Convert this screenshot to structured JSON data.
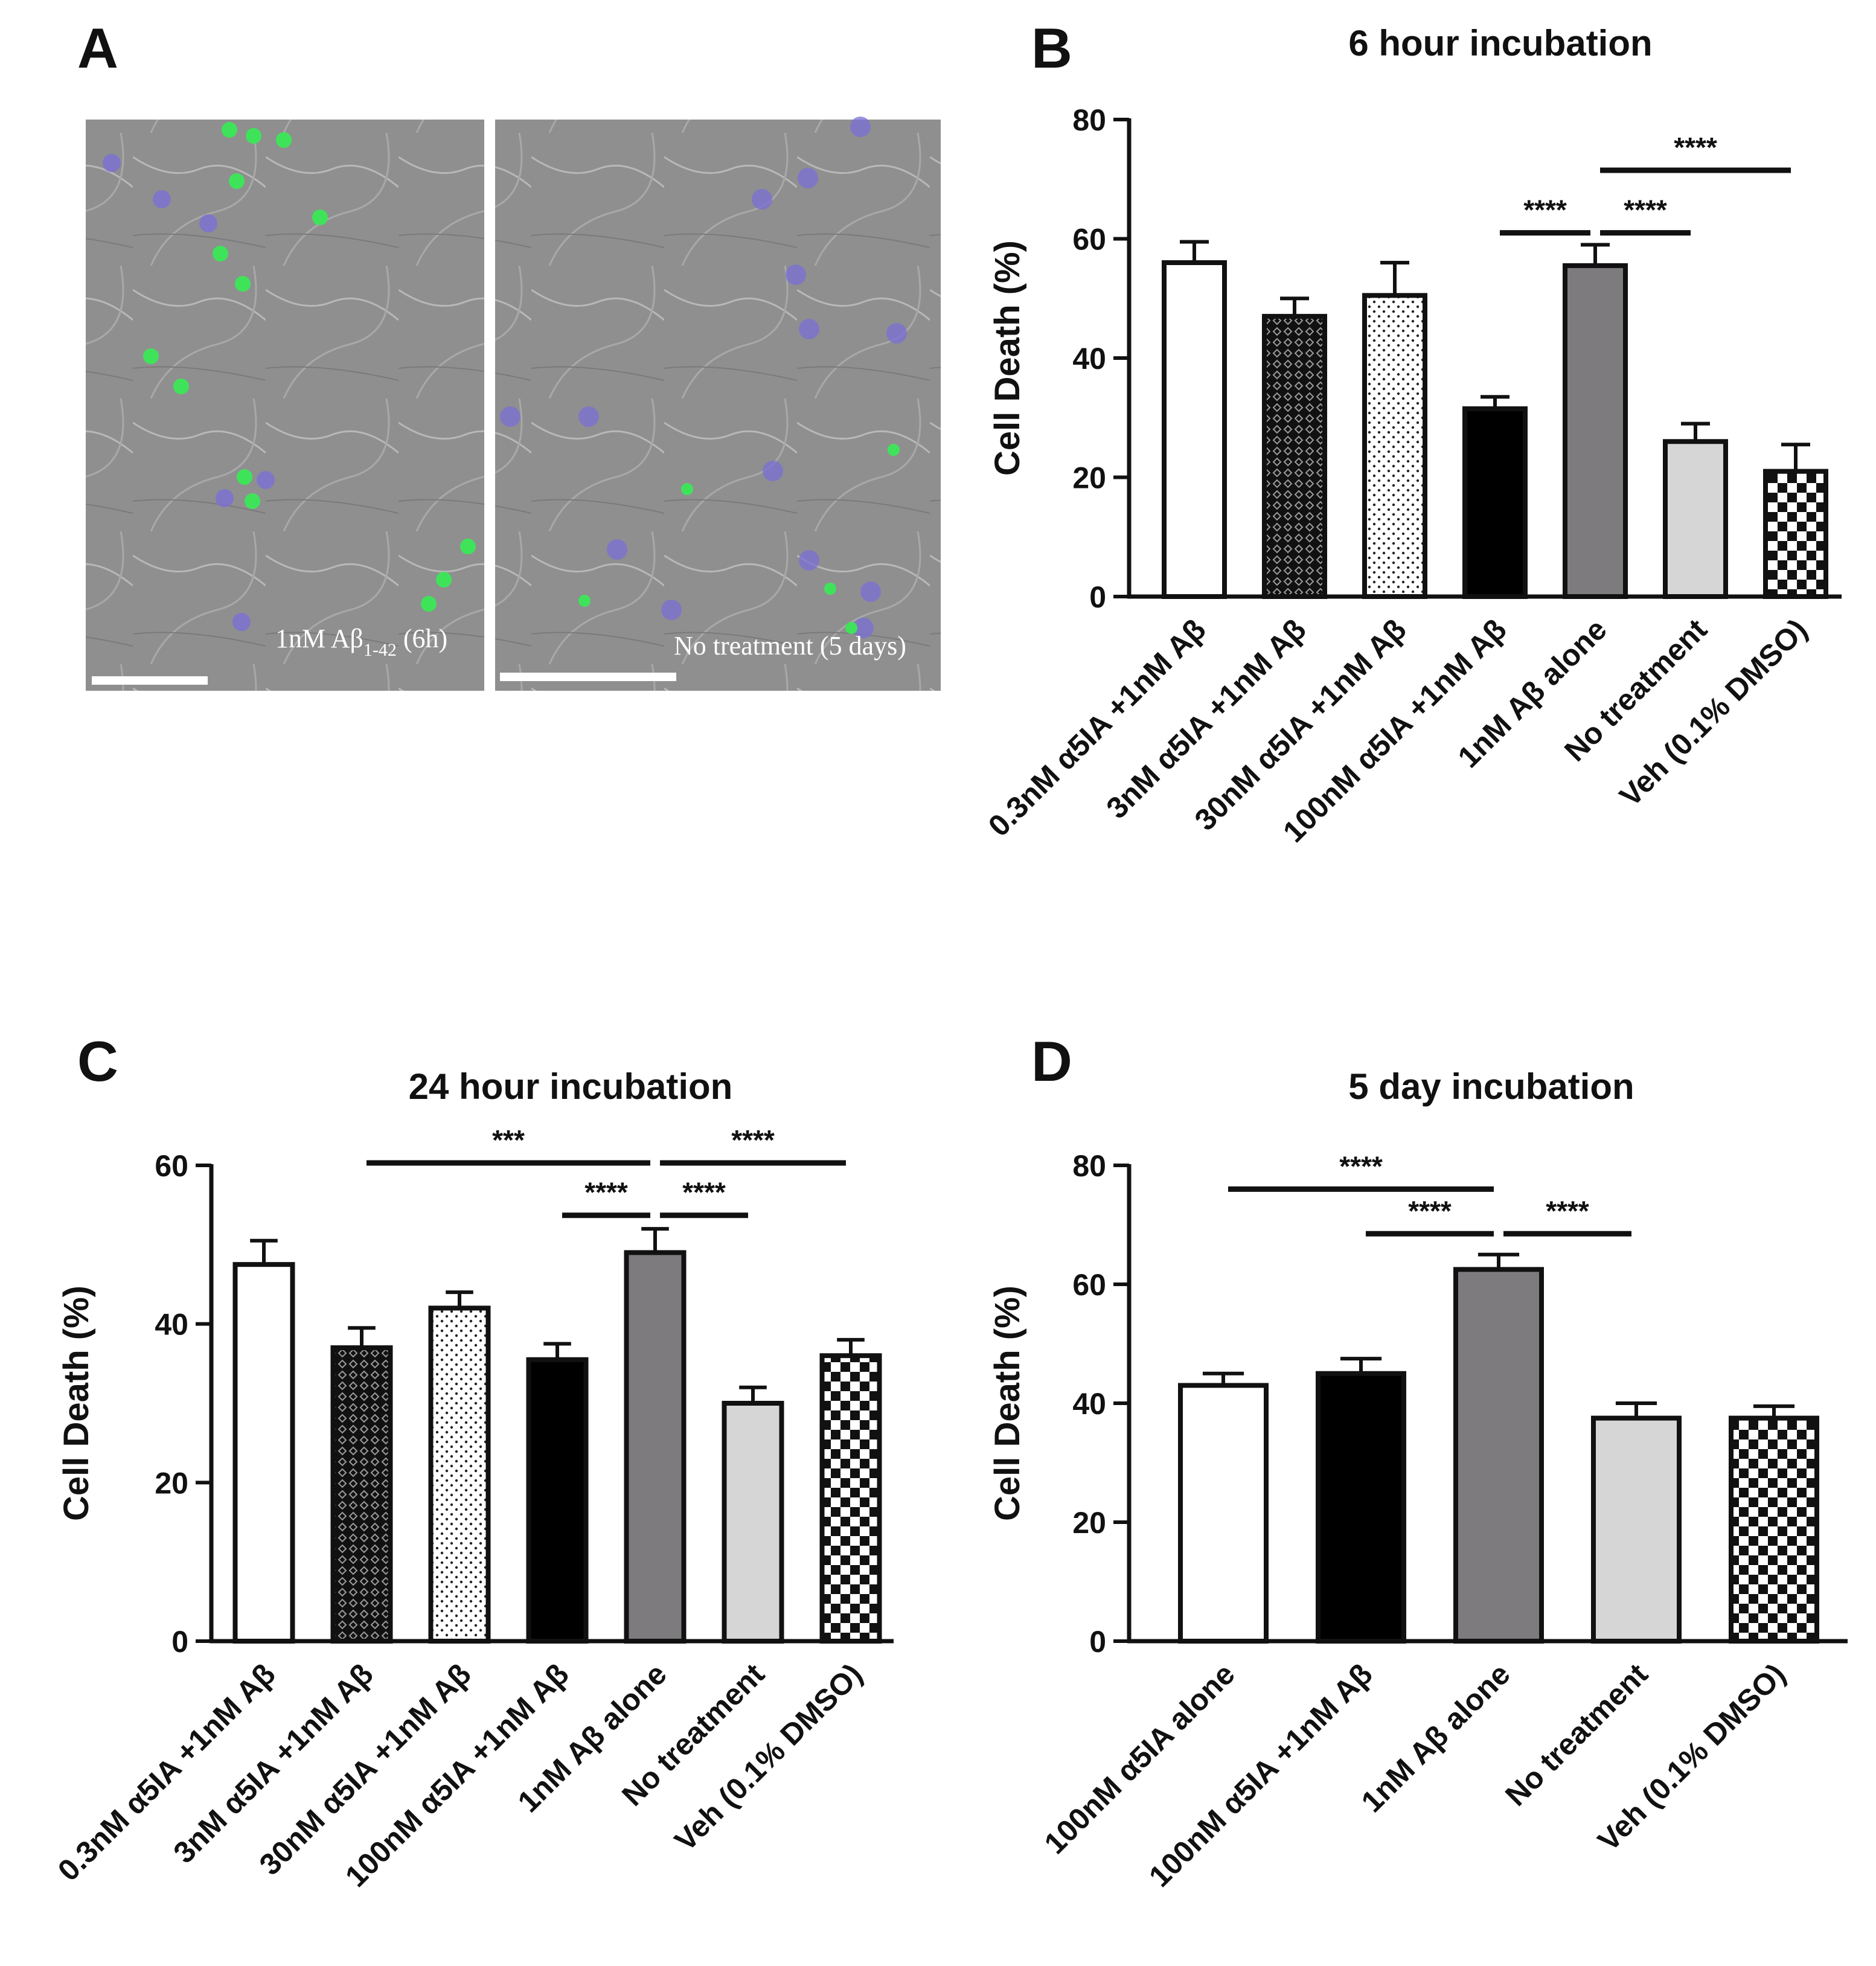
{
  "panels": {
    "A": {
      "letter": "A",
      "images": [
        {
          "caption_main": "1nM Aβ",
          "caption_sub": "1-42",
          "caption_tail": " (6h)"
        },
        {
          "caption_main": "No treatment (5 days)"
        }
      ]
    },
    "B": {
      "letter": "B"
    },
    "C": {
      "letter": "C"
    },
    "D": {
      "letter": "D"
    }
  },
  "colors": {
    "white": "#ffffff",
    "black": "#000000",
    "dark_gray": "#7d7b7d",
    "light_gray": "#d6d6d6",
    "outline": "#111111"
  },
  "chart_data": [
    {
      "panel": "B",
      "type": "bar",
      "title": "6 hour incubation",
      "xlabel": "",
      "ylabel": "Cell Death (%)",
      "ylim": [
        0,
        80
      ],
      "yticks": [
        0,
        20,
        40,
        60,
        80
      ],
      "categories": [
        "0.3nM α5IA +1nM Aβ",
        "3nM α5IA +1nM Aβ",
        "30nM α5IA +1nM Aβ",
        "100nM α5IA +1nM Aβ",
        "1nM Aβ alone",
        "No treatment",
        "Veh (0.1% DMSO)"
      ],
      "values": [
        56,
        47,
        50.5,
        31.5,
        55.5,
        26,
        21
      ],
      "errors": [
        3.5,
        3,
        5.5,
        2,
        3.5,
        3,
        4.5
      ],
      "fills": [
        "white",
        "diamond",
        "dots",
        "black",
        "dark_gray",
        "light_gray",
        "checker"
      ],
      "significance": [
        {
          "from": 3,
          "to": 4,
          "label": "****",
          "y": 61
        },
        {
          "from": 4,
          "to": 5,
          "label": "****",
          "y": 61
        },
        {
          "from": 4,
          "to": 6,
          "label": "****",
          "y": 71.5
        }
      ]
    },
    {
      "panel": "C",
      "type": "bar",
      "title": "24 hour incubation",
      "xlabel": "",
      "ylabel": "Cell Death (%)",
      "ylim": [
        0,
        60
      ],
      "yticks": [
        0,
        20,
        40,
        60
      ],
      "categories": [
        "0.3nM α5IA +1nM Aβ",
        "3nM α5IA +1nM Aβ",
        "30nM α5IA +1nM Aβ",
        "100nM α5IA +1nM Aβ",
        "1nM Aβ alone",
        "No treatment",
        "Veh (0.1% DMSO)"
      ],
      "values": [
        47.5,
        37,
        42,
        35.5,
        49,
        30,
        36
      ],
      "errors": [
        3,
        2.5,
        2,
        2,
        3,
        2,
        2
      ],
      "fills": [
        "white",
        "diamond",
        "dots",
        "black",
        "dark_gray",
        "light_gray",
        "checker"
      ],
      "significance": [
        {
          "from": 1,
          "to": 4,
          "label": "***",
          "y": 60.3
        },
        {
          "from": 4,
          "to": 6,
          "label": "****",
          "y": 60.3
        },
        {
          "from": 3,
          "to": 4,
          "label": "****",
          "y": 53.7
        },
        {
          "from": 4,
          "to": 5,
          "label": "****",
          "y": 53.7
        }
      ]
    },
    {
      "panel": "D",
      "type": "bar",
      "title": "5 day incubation",
      "xlabel": "",
      "ylabel": "Cell Death (%)",
      "ylim": [
        0,
        80
      ],
      "yticks": [
        0,
        20,
        40,
        60,
        80
      ],
      "categories": [
        "100nM α5IA alone",
        "100nM α5IA +1nM Aβ",
        "1nM Aβ alone",
        "No treatment",
        "Veh (0.1% DMSO)"
      ],
      "values": [
        43,
        45,
        62.5,
        37.5,
        37.5
      ],
      "errors": [
        2,
        2.5,
        2.5,
        2.5,
        2
      ],
      "fills": [
        "white",
        "black",
        "dark_gray",
        "light_gray",
        "checker"
      ],
      "significance": [
        {
          "from": 0,
          "to": 2,
          "label": "****",
          "y": 76
        },
        {
          "from": 1,
          "to": 2,
          "label": "****",
          "y": 68.5
        },
        {
          "from": 2,
          "to": 3,
          "label": "****",
          "y": 68.5
        }
      ]
    }
  ]
}
